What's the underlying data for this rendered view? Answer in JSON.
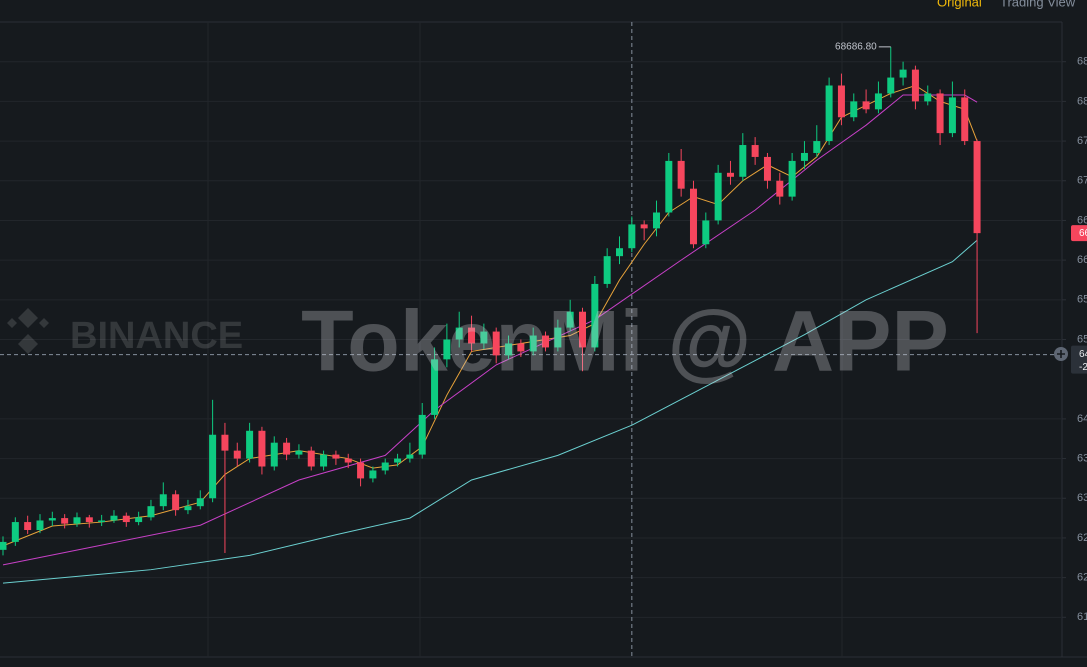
{
  "header": {
    "tabs": [
      "Original",
      "Trading View"
    ]
  },
  "watermark": {
    "logo": "BINANCE",
    "text": "TokenMi @ APP"
  },
  "chart_data": {
    "type": "candlestick",
    "up_color": "#0ecb81",
    "down_color": "#f6465d",
    "ylim": [
      61000,
      69000
    ],
    "yticks": [
      {
        "value": 68500,
        "label": "68"
      },
      {
        "value": 68000,
        "label": "68"
      },
      {
        "value": 67500,
        "label": "67"
      },
      {
        "value": 67000,
        "label": "67"
      },
      {
        "value": 66500,
        "label": "66"
      },
      {
        "value": 66000,
        "label": "66"
      },
      {
        "value": 65500,
        "label": "65"
      },
      {
        "value": 65000,
        "label": "65"
      },
      {
        "value": 64000,
        "label": "64"
      },
      {
        "value": 63500,
        "label": "63"
      },
      {
        "value": 63000,
        "label": "63"
      },
      {
        "value": 62500,
        "label": "62"
      },
      {
        "value": 62000,
        "label": "62"
      },
      {
        "value": 61500,
        "label": "61"
      }
    ],
    "grid": true,
    "high_annotation": {
      "value": 68686.8,
      "label": "68686.80",
      "index": 72
    },
    "last_price_label": {
      "value": 66340,
      "label": "66"
    },
    "crosshair": {
      "index": 51,
      "value": 64810,
      "label": "64",
      "sublabel": "-2"
    },
    "candles": [
      [
        62350,
        62520,
        62280,
        62450
      ],
      [
        62450,
        62760,
        62400,
        62700
      ],
      [
        62700,
        62780,
        62550,
        62600
      ],
      [
        62600,
        62800,
        62560,
        62720
      ],
      [
        62720,
        62830,
        62650,
        62750
      ],
      [
        62750,
        62800,
        62620,
        62680
      ],
      [
        62680,
        62820,
        62640,
        62760
      ],
      [
        62760,
        62790,
        62630,
        62700
      ],
      [
        62700,
        62790,
        62650,
        62720
      ],
      [
        62720,
        62850,
        62690,
        62780
      ],
      [
        62780,
        62820,
        62640,
        62700
      ],
      [
        62700,
        62830,
        62660,
        62760
      ],
      [
        62760,
        62980,
        62720,
        62900
      ],
      [
        62900,
        63200,
        62850,
        63050
      ],
      [
        63050,
        63100,
        62780,
        62850
      ],
      [
        62850,
        62980,
        62800,
        62900
      ],
      [
        62900,
        63100,
        62860,
        63000
      ],
      [
        63000,
        64240,
        62950,
        63800
      ],
      [
        63800,
        63950,
        62310,
        63600
      ],
      [
        63600,
        63700,
        63400,
        63500
      ],
      [
        63500,
        63950,
        63450,
        63850
      ],
      [
        63850,
        63900,
        63300,
        63400
      ],
      [
        63400,
        63780,
        63350,
        63700
      ],
      [
        63700,
        63760,
        63480,
        63550
      ],
      [
        63550,
        63680,
        63500,
        63600
      ],
      [
        63600,
        63650,
        63350,
        63400
      ],
      [
        63400,
        63600,
        63350,
        63550
      ],
      [
        63550,
        63600,
        63420,
        63500
      ],
      [
        63500,
        63560,
        63380,
        63450
      ],
      [
        63450,
        63500,
        63150,
        63250
      ],
      [
        63250,
        63400,
        63200,
        63350
      ],
      [
        63350,
        63500,
        63300,
        63450
      ],
      [
        63450,
        63560,
        63400,
        63500
      ],
      [
        63500,
        63700,
        63450,
        63550
      ],
      [
        63550,
        64200,
        63500,
        64050
      ],
      [
        64050,
        64900,
        64000,
        64750
      ],
      [
        64750,
        65200,
        64650,
        65000
      ],
      [
        65000,
        65350,
        64900,
        65150
      ],
      [
        65150,
        65300,
        64850,
        64950
      ],
      [
        64950,
        65200,
        64880,
        65100
      ],
      [
        65100,
        65150,
        64700,
        64800
      ],
      [
        64800,
        65050,
        64750,
        64950
      ],
      [
        64950,
        65000,
        64780,
        64850
      ],
      [
        64850,
        65150,
        64800,
        65050
      ],
      [
        65050,
        65100,
        64850,
        64900
      ],
      [
        64900,
        65250,
        64850,
        65150
      ],
      [
        65150,
        65500,
        65100,
        65350
      ],
      [
        65350,
        65400,
        64600,
        64900
      ],
      [
        64900,
        65800,
        64850,
        65700
      ],
      [
        65700,
        66150,
        65650,
        66050
      ],
      [
        66050,
        66300,
        65950,
        66150
      ],
      [
        66150,
        66550,
        66100,
        66450
      ],
      [
        66450,
        66500,
        66250,
        66400
      ],
      [
        66400,
        66750,
        66300,
        66600
      ],
      [
        66600,
        67350,
        66550,
        67250
      ],
      [
        67250,
        67400,
        66800,
        66900
      ],
      [
        66900,
        67000,
        66150,
        66200
      ],
      [
        66200,
        66600,
        66150,
        66500
      ],
      [
        66500,
        67200,
        66450,
        67100
      ],
      [
        67100,
        67250,
        66950,
        67050
      ],
      [
        67050,
        67600,
        67000,
        67450
      ],
      [
        67450,
        67550,
        67200,
        67300
      ],
      [
        67300,
        67350,
        66900,
        67000
      ],
      [
        67000,
        67100,
        66700,
        66800
      ],
      [
        66800,
        67350,
        66750,
        67250
      ],
      [
        67250,
        67500,
        67150,
        67350
      ],
      [
        67350,
        67700,
        67300,
        67500
      ],
      [
        67500,
        68300,
        67450,
        68200
      ],
      [
        68200,
        68350,
        67700,
        67800
      ],
      [
        67800,
        68100,
        67750,
        68000
      ],
      [
        68000,
        68150,
        67850,
        67900
      ],
      [
        67900,
        68250,
        67850,
        68100
      ],
      [
        68100,
        68686.8,
        68050,
        68300
      ],
      [
        68300,
        68500,
        68200,
        68400
      ],
      [
        68400,
        68450,
        67900,
        68000
      ],
      [
        68000,
        68200,
        67950,
        68100
      ],
      [
        68100,
        68150,
        67450,
        67600
      ],
      [
        67600,
        68250,
        67550,
        68050
      ],
      [
        68050,
        68150,
        67450,
        67500
      ],
      [
        67500,
        67520,
        65080,
        66340
      ]
    ],
    "moving_averages": [
      {
        "color": "#e8a33a",
        "x": [
          0,
          4,
          8,
          12,
          16,
          18,
          20,
          24,
          28,
          30,
          32,
          34,
          36,
          38,
          42,
          46,
          48,
          50,
          52,
          54,
          56,
          58,
          60,
          62,
          64,
          66,
          68,
          70,
          72,
          74,
          76,
          78,
          79
        ],
        "values": [
          62400,
          62650,
          62700,
          62780,
          62950,
          63300,
          63500,
          63600,
          63500,
          63380,
          63420,
          63650,
          64300,
          64850,
          64950,
          65050,
          65200,
          65750,
          66200,
          66600,
          66800,
          66700,
          67000,
          67200,
          67050,
          67300,
          67800,
          67950,
          68100,
          68200,
          68000,
          67900,
          67500
        ]
      },
      {
        "color": "#c740c7",
        "x": [
          0,
          8,
          16,
          24,
          31,
          35,
          40,
          48,
          55,
          61,
          66,
          70,
          73,
          78,
          79
        ],
        "values": [
          62160,
          62410,
          62660,
          63230,
          63540,
          64110,
          64680,
          65250,
          66000,
          66630,
          67260,
          67700,
          68080,
          68080,
          67990
        ]
      },
      {
        "color": "#6bd0d0",
        "x": [
          0,
          12,
          20,
          27,
          33,
          38,
          45,
          51,
          58,
          65,
          70,
          77,
          79
        ],
        "values": [
          61930,
          62100,
          62280,
          62540,
          62750,
          63230,
          63540,
          63920,
          64490,
          65060,
          65500,
          65980,
          66250
        ]
      }
    ]
  }
}
